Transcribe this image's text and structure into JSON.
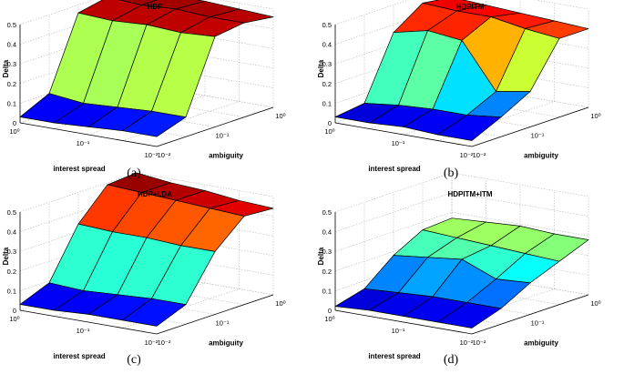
{
  "chart_data": [
    {
      "type": "surface",
      "title": "HDP",
      "caption": "(a)",
      "zlabel": "Delta",
      "xlabel": "interest spread",
      "ylabel": "ambiguity",
      "zlim": [
        0,
        0.5
      ],
      "z_ticks": [
        "0",
        "0.1",
        "0.2",
        "0.3",
        "0.4",
        "0.5"
      ],
      "x_ticks": [
        "10⁰",
        "10⁻¹",
        "10⁻²"
      ],
      "y_ticks": [
        "10⁻²",
        "10⁻¹",
        "10⁰"
      ],
      "x": [
        "10^0",
        "10^-0.5",
        "10^-1",
        "10^-1.5",
        "10^-2"
      ],
      "y": [
        "10^-2",
        "10^-1.5",
        "10^-1",
        "10^-0.5",
        "10^0"
      ],
      "z": [
        [
          0.03,
          0.03,
          0.04,
          0.05,
          0.05
        ],
        [
          0.1,
          0.08,
          0.09,
          0.1,
          0.1
        ],
        [
          0.46,
          0.45,
          0.46,
          0.45,
          0.46
        ],
        [
          0.49,
          0.48,
          0.49,
          0.48,
          0.48
        ],
        [
          0.49,
          0.48,
          0.48,
          0.47,
          0.46
        ]
      ]
    },
    {
      "type": "surface",
      "title": "HDPITM",
      "caption": "(b)",
      "zlabel": "Delta",
      "xlabel": "interest spread",
      "ylabel": "ambiguity",
      "zlim": [
        0,
        0.5
      ],
      "z_ticks": [
        "0",
        "0.1",
        "0.2",
        "0.3",
        "0.4",
        "0.5"
      ],
      "x_ticks": [
        "10⁰",
        "10⁻¹",
        "10⁻²"
      ],
      "y_ticks": [
        "10⁻²",
        "10⁻¹",
        "10⁰"
      ],
      "x": [
        "10^0",
        "10^-0.5",
        "10^-1",
        "10^-1.5",
        "10^-2"
      ],
      "y": [
        "10^-2",
        "10^-1.5",
        "10^-1",
        "10^-0.5",
        "10^0"
      ],
      "z": [
        [
          0.03,
          0.03,
          0.04,
          0.03,
          0.03
        ],
        [
          0.05,
          0.07,
          0.08,
          0.08,
          0.1
        ],
        [
          0.36,
          0.4,
          0.38,
          0.15,
          0.18
        ],
        [
          0.46,
          0.45,
          0.45,
          0.42,
          0.4
        ],
        [
          0.44,
          0.43,
          0.42,
          0.41,
          0.4
        ]
      ]
    },
    {
      "type": "surface",
      "title": "HDP+LDA",
      "caption": "(c)",
      "zlabel": "Delta",
      "xlabel": "interest spread",
      "ylabel": "ambiguity",
      "zlim": [
        0,
        0.5
      ],
      "z_ticks": [
        "0",
        "0.1",
        "0.2",
        "0.3",
        "0.4",
        "0.5"
      ],
      "x_ticks": [
        "10⁰",
        "10⁻¹",
        "10⁻²"
      ],
      "y_ticks": [
        "10⁻²",
        "10⁻¹",
        "10⁰"
      ],
      "x": [
        "10^0",
        "10^-0.5",
        "10^-1",
        "10^-1.5",
        "10^-2"
      ],
      "y": [
        "10^-2",
        "10^-1.5",
        "10^-1",
        "10^-0.5",
        "10^0"
      ],
      "z": [
        [
          0.03,
          0.03,
          0.04,
          0.04,
          0.04
        ],
        [
          0.09,
          0.08,
          0.09,
          0.1,
          0.1
        ],
        [
          0.34,
          0.33,
          0.33,
          0.32,
          0.32
        ],
        [
          0.49,
          0.48,
          0.47,
          0.46,
          0.45
        ],
        [
          0.5,
          0.48,
          0.47,
          0.45,
          0.44
        ]
      ]
    },
    {
      "type": "surface",
      "title": "HDPITM+ITM",
      "caption": "(d)",
      "zlabel": "Delta",
      "xlabel": "interest spread",
      "ylabel": "ambiguity",
      "zlim": [
        0,
        0.5
      ],
      "z_ticks": [
        "0",
        "0.1",
        "0.2",
        "0.3",
        "0.4",
        "0.5"
      ],
      "x_ticks": [
        "10⁰",
        "10⁻¹",
        "10⁻²"
      ],
      "y_ticks": [
        "10⁻²",
        "10⁻¹",
        "10⁰"
      ],
      "x": [
        "10^0",
        "10^-0.5",
        "10^-1",
        "10^-1.5",
        "10^-2"
      ],
      "y": [
        "10^-2",
        "10^-1.5",
        "10^-1",
        "10^-0.5",
        "10^0"
      ],
      "z": [
        [
          0.02,
          0.03,
          0.03,
          0.03,
          0.03
        ],
        [
          0.06,
          0.07,
          0.08,
          0.08,
          0.08
        ],
        [
          0.18,
          0.2,
          0.22,
          0.15,
          0.16
        ],
        [
          0.26,
          0.25,
          0.24,
          0.23,
          0.22
        ],
        [
          0.27,
          0.28,
          0.29,
          0.28,
          0.28
        ]
      ]
    }
  ]
}
